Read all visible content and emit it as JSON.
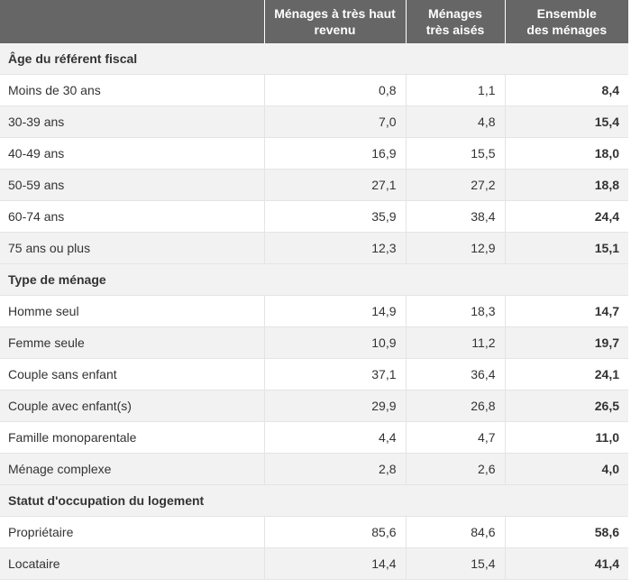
{
  "table": {
    "headers": [
      "",
      "Ménages à très haut\nrevenu",
      "Ménages\ntrès aisés",
      "Ensemble\ndes ménages"
    ],
    "sections": [
      {
        "title": "Âge du référent fiscal",
        "rows": [
          {
            "label": "Moins de 30 ans",
            "values": [
              "0,8",
              "1,1",
              "8,4"
            ]
          },
          {
            "label": "30-39 ans",
            "values": [
              "7,0",
              "4,8",
              "15,4"
            ]
          },
          {
            "label": "40-49 ans",
            "values": [
              "16,9",
              "15,5",
              "18,0"
            ]
          },
          {
            "label": "50-59 ans",
            "values": [
              "27,1",
              "27,2",
              "18,8"
            ]
          },
          {
            "label": "60-74 ans",
            "values": [
              "35,9",
              "38,4",
              "24,4"
            ]
          },
          {
            "label": "75 ans ou plus",
            "values": [
              "12,3",
              "12,9",
              "15,1"
            ]
          }
        ]
      },
      {
        "title": "Type de ménage",
        "rows": [
          {
            "label": "Homme seul",
            "values": [
              "14,9",
              "18,3",
              "14,7"
            ]
          },
          {
            "label": "Femme seule",
            "values": [
              "10,9",
              "11,2",
              "19,7"
            ]
          },
          {
            "label": "Couple sans enfant",
            "values": [
              "37,1",
              "36,4",
              "24,1"
            ]
          },
          {
            "label": "Couple avec enfant(s)",
            "values": [
              "29,9",
              "26,8",
              "26,5"
            ]
          },
          {
            "label": "Famille monoparentale",
            "values": [
              "4,4",
              "4,7",
              "11,0"
            ]
          },
          {
            "label": "Ménage complexe",
            "values": [
              "2,8",
              "2,6",
              "4,0"
            ]
          }
        ]
      },
      {
        "title": "Statut d'occupation du logement",
        "rows": [
          {
            "label": "Propriétaire",
            "values": [
              "85,6",
              "84,6",
              "58,6"
            ]
          },
          {
            "label": "Locataire",
            "values": [
              "14,4",
              "15,4",
              "41,4"
            ]
          }
        ]
      }
    ]
  }
}
